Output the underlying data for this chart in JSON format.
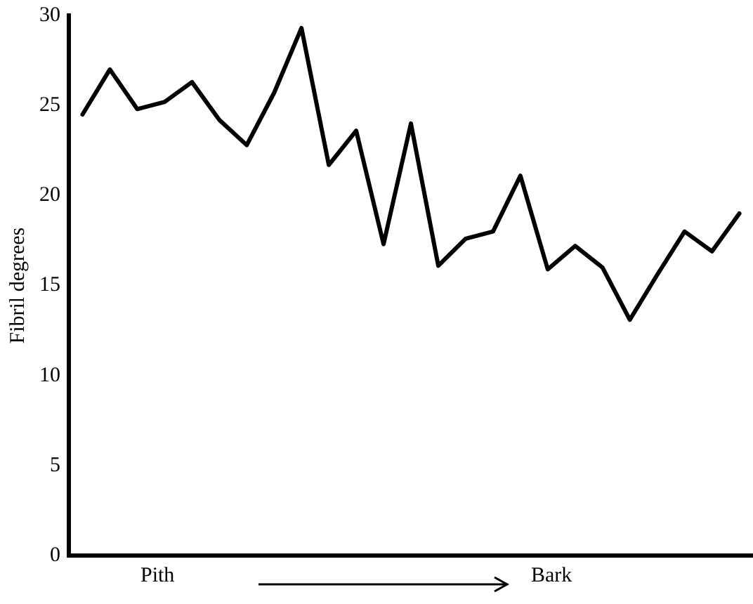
{
  "chart_data": {
    "type": "line",
    "ylabel": "Fibril degrees",
    "categories": [
      null,
      null,
      null,
      null,
      null,
      null,
      null,
      null,
      null,
      null,
      null,
      null,
      null,
      null,
      null,
      null,
      null,
      null,
      null,
      null,
      null,
      null,
      null,
      null,
      null
    ],
    "series": [
      {
        "color": "#000000",
        "values": [
          24.5,
          27,
          24.8,
          25.2,
          26.3,
          24.2,
          22.8,
          25.7,
          29.3,
          21.7,
          23.6,
          17.3,
          24,
          16.1,
          17.6,
          18,
          21.1,
          15.9,
          17.2,
          16,
          13.1,
          15.6,
          18,
          16.9,
          19
        ]
      }
    ],
    "ylim": [
      0,
      30
    ],
    "yticks": [
      0,
      5,
      10,
      15,
      20,
      25,
      30
    ],
    "grid": false,
    "legend": false,
    "marker": "none",
    "line_style": "solid",
    "annotations": [
      "Pith",
      "Bark"
    ]
  }
}
